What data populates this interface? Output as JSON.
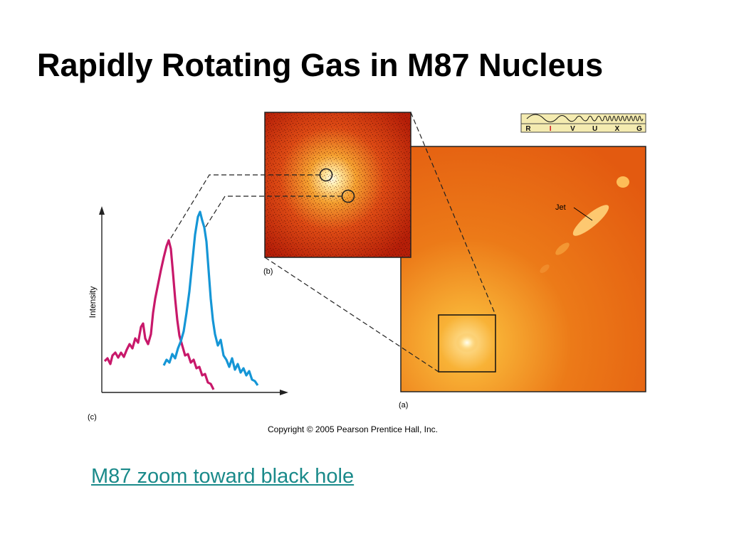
{
  "slide": {
    "title": "Rapidly Rotating Gas in M87 Nucleus",
    "link_text": "M87 zoom toward black hole"
  },
  "figure": {
    "panel_a_label": "(a)",
    "panel_b_label": "(b)",
    "panel_c_label": "(c)",
    "jet_label": "Jet",
    "intensity_axis_label": "Intensity",
    "copyright": "Copyright © 2005 Pearson Prentice Hall, Inc.",
    "spectrum_bands": [
      "R",
      "I",
      "V",
      "U",
      "X",
      "G"
    ],
    "highlighted_band": "I",
    "colors": {
      "redshift_line": "#c8186a",
      "blueshift_line": "#1596d6",
      "link": "#1a8a8a",
      "image_background": "#e8650f"
    }
  }
}
